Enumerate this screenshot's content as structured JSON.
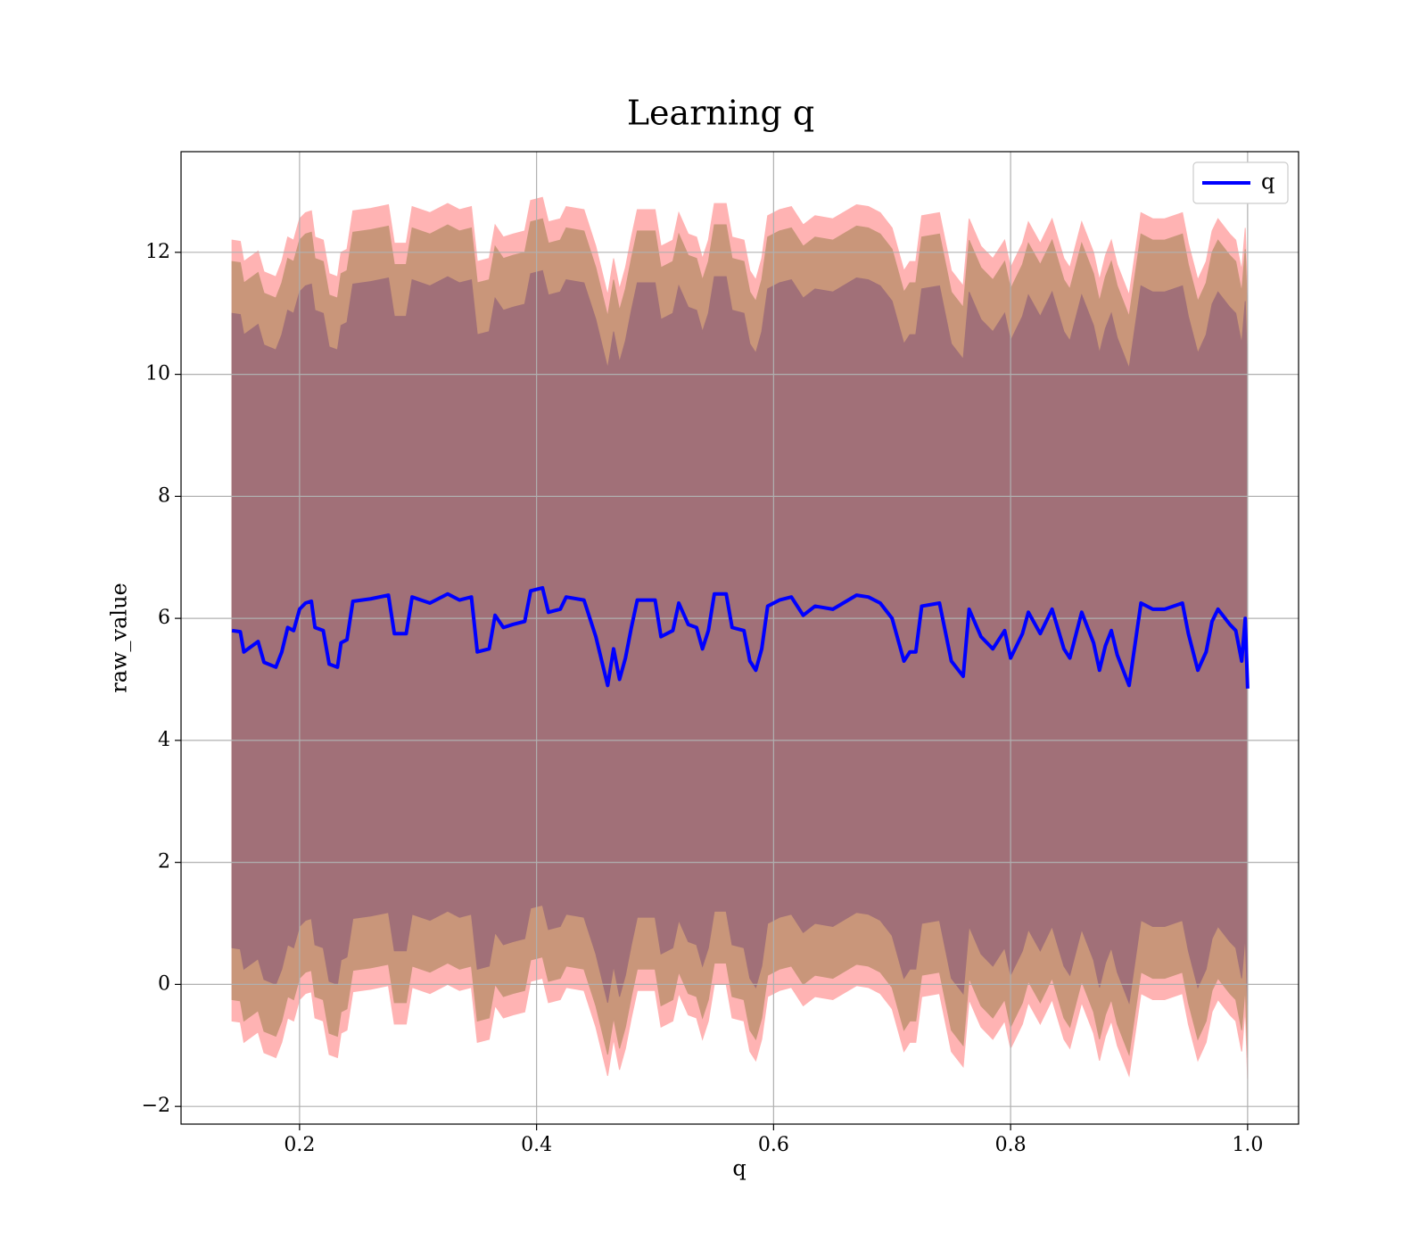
{
  "chart_data": {
    "type": "line",
    "title": "Learning q",
    "xlabel": "q",
    "ylabel": "raw_value",
    "x": [
      0.143,
      0.15,
      0.153,
      0.165,
      0.17,
      0.18,
      0.185,
      0.19,
      0.195,
      0.2,
      0.205,
      0.21,
      0.213,
      0.22,
      0.225,
      0.232,
      0.235,
      0.24,
      0.245,
      0.26,
      0.275,
      0.28,
      0.29,
      0.295,
      0.31,
      0.325,
      0.335,
      0.345,
      0.35,
      0.36,
      0.365,
      0.372,
      0.38,
      0.39,
      0.395,
      0.405,
      0.41,
      0.42,
      0.425,
      0.44,
      0.45,
      0.46,
      0.465,
      0.47,
      0.475,
      0.48,
      0.485,
      0.5,
      0.505,
      0.515,
      0.52,
      0.528,
      0.535,
      0.54,
      0.545,
      0.55,
      0.56,
      0.565,
      0.575,
      0.58,
      0.585,
      0.59,
      0.595,
      0.605,
      0.615,
      0.625,
      0.635,
      0.65,
      0.67,
      0.68,
      0.69,
      0.7,
      0.71,
      0.715,
      0.72,
      0.725,
      0.74,
      0.75,
      0.76,
      0.765,
      0.775,
      0.785,
      0.795,
      0.8,
      0.81,
      0.815,
      0.825,
      0.835,
      0.845,
      0.85,
      0.86,
      0.87,
      0.875,
      0.88,
      0.885,
      0.89,
      0.9,
      0.91,
      0.92,
      0.93,
      0.945,
      0.95,
      0.958,
      0.965,
      0.97,
      0.975,
      0.985,
      0.99,
      0.995,
      0.998,
      1.0
    ],
    "series": [
      {
        "name": "q",
        "color": "#0000ff",
        "values": [
          5.8,
          5.78,
          5.45,
          5.62,
          5.28,
          5.2,
          5.45,
          5.85,
          5.8,
          6.15,
          6.25,
          6.28,
          5.85,
          5.8,
          5.25,
          5.2,
          5.6,
          5.65,
          6.28,
          6.32,
          6.38,
          5.75,
          5.75,
          6.35,
          6.25,
          6.4,
          6.3,
          6.35,
          5.45,
          5.5,
          6.05,
          5.85,
          5.9,
          5.95,
          6.45,
          6.5,
          6.1,
          6.15,
          6.35,
          6.3,
          5.7,
          4.9,
          5.5,
          5.0,
          5.35,
          5.85,
          6.3,
          6.3,
          5.7,
          5.8,
          6.25,
          5.9,
          5.85,
          5.5,
          5.8,
          6.4,
          6.4,
          5.85,
          5.8,
          5.3,
          5.15,
          5.5,
          6.2,
          6.3,
          6.35,
          6.05,
          6.2,
          6.15,
          6.38,
          6.35,
          6.25,
          6.0,
          5.3,
          5.45,
          5.45,
          6.2,
          6.25,
          5.3,
          5.05,
          6.15,
          5.7,
          5.5,
          5.8,
          5.35,
          5.75,
          6.1,
          5.75,
          6.15,
          5.5,
          5.35,
          6.1,
          5.6,
          5.15,
          5.55,
          5.8,
          5.4,
          4.9,
          6.25,
          6.15,
          6.15,
          6.25,
          5.75,
          5.15,
          5.45,
          5.95,
          6.15,
          5.9,
          5.8,
          5.3,
          6.0,
          4.85
        ]
      }
    ],
    "bands": [
      {
        "color": "#ffb3b3",
        "error": 6.4
      },
      {
        "color": "#c9967a",
        "error": 6.05
      },
      {
        "color": "#a17078",
        "error": 5.2
      }
    ],
    "xlim": [
      0.1,
      1.043
    ],
    "ylim": [
      -2.29,
      13.65
    ],
    "xticks": [
      0.2,
      0.4,
      0.6,
      0.8,
      {
        "value": 1.0,
        "label": "1.0"
      }
    ],
    "yticks": [
      {
        "value": -2,
        "label": "−2"
      },
      0,
      2,
      4,
      6,
      8,
      10,
      12
    ],
    "grid": true,
    "legend": "upper right"
  }
}
